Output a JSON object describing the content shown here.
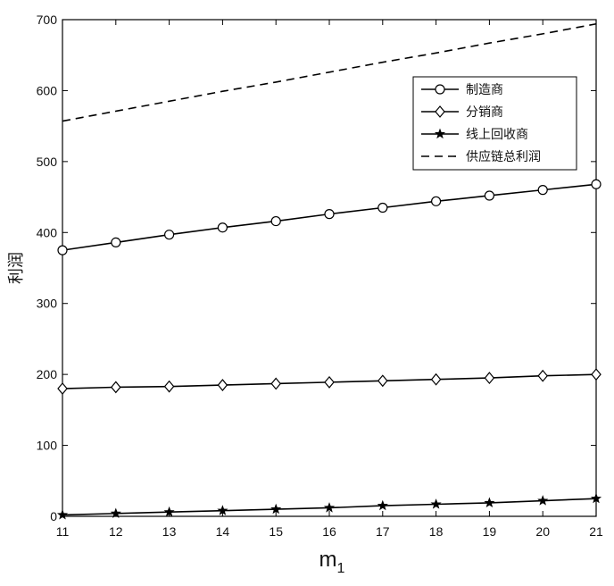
{
  "chart_data": {
    "type": "line",
    "xlabel_main": "m",
    "xlabel_sub": "1",
    "ylabel": "利润",
    "xlim": [
      11,
      21
    ],
    "ylim": [
      0,
      700
    ],
    "x_ticks": [
      11,
      12,
      13,
      14,
      15,
      16,
      17,
      18,
      19,
      20,
      21
    ],
    "y_ticks": [
      0,
      100,
      200,
      300,
      400,
      500,
      600,
      700
    ],
    "grid": false,
    "legend_position": "top-right",
    "x": [
      11,
      12,
      13,
      14,
      15,
      16,
      17,
      18,
      19,
      20,
      21
    ],
    "series": [
      {
        "name": "制造商",
        "marker": "circle",
        "dash": "solid",
        "values": [
          375,
          386,
          397,
          407,
          416,
          426,
          435,
          444,
          452,
          460,
          468
        ]
      },
      {
        "name": "分销商",
        "marker": "diamond",
        "dash": "solid",
        "values": [
          180,
          182,
          183,
          185,
          187,
          189,
          191,
          193,
          195,
          198,
          200
        ]
      },
      {
        "name": "线上回收商",
        "marker": "star",
        "dash": "solid",
        "values": [
          2,
          4,
          6,
          8,
          10,
          12,
          15,
          17,
          19,
          22,
          25
        ]
      },
      {
        "name": "供应链总利润",
        "marker": "none",
        "dash": "dashed",
        "values": [
          557,
          571,
          585,
          599,
          612,
          626,
          640,
          653,
          667,
          680,
          694
        ]
      }
    ]
  }
}
